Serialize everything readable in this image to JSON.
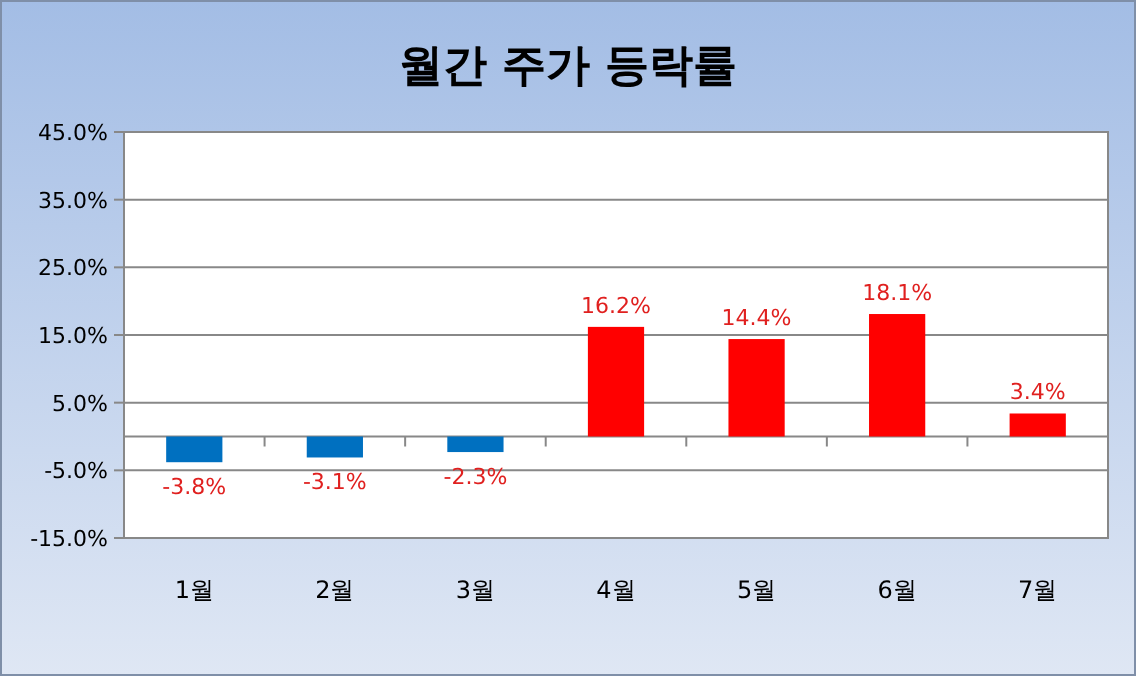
{
  "chart_data": {
    "type": "bar",
    "title": "월간 주가 등락률",
    "categories": [
      "1월",
      "2월",
      "3월",
      "4월",
      "5월",
      "6월",
      "7월"
    ],
    "values": [
      -3.8,
      -3.1,
      -2.3,
      16.2,
      14.4,
      18.1,
      3.4
    ],
    "colors": [
      "#0070c0",
      "#0070c0",
      "#0070c0",
      "#ff0000",
      "#ff0000",
      "#ff0000",
      "#ff0000"
    ],
    "value_labels": [
      "-3.8%",
      "-3.1%",
      "-2.3%",
      "16.2%",
      "14.4%",
      "18.1%",
      "3.4%"
    ],
    "ylim": [
      -15,
      45
    ],
    "yticks": [
      {
        "value": -15,
        "label": "-15.0%"
      },
      {
        "value": -5,
        "label": "-5.0%"
      },
      {
        "value": 5,
        "label": "5.0%"
      },
      {
        "value": 15,
        "label": "15.0%"
      },
      {
        "value": 25,
        "label": "25.0%"
      },
      {
        "value": 35,
        "label": "35.0%"
      },
      {
        "value": 45,
        "label": "45.0%"
      }
    ],
    "grid": "y"
  }
}
